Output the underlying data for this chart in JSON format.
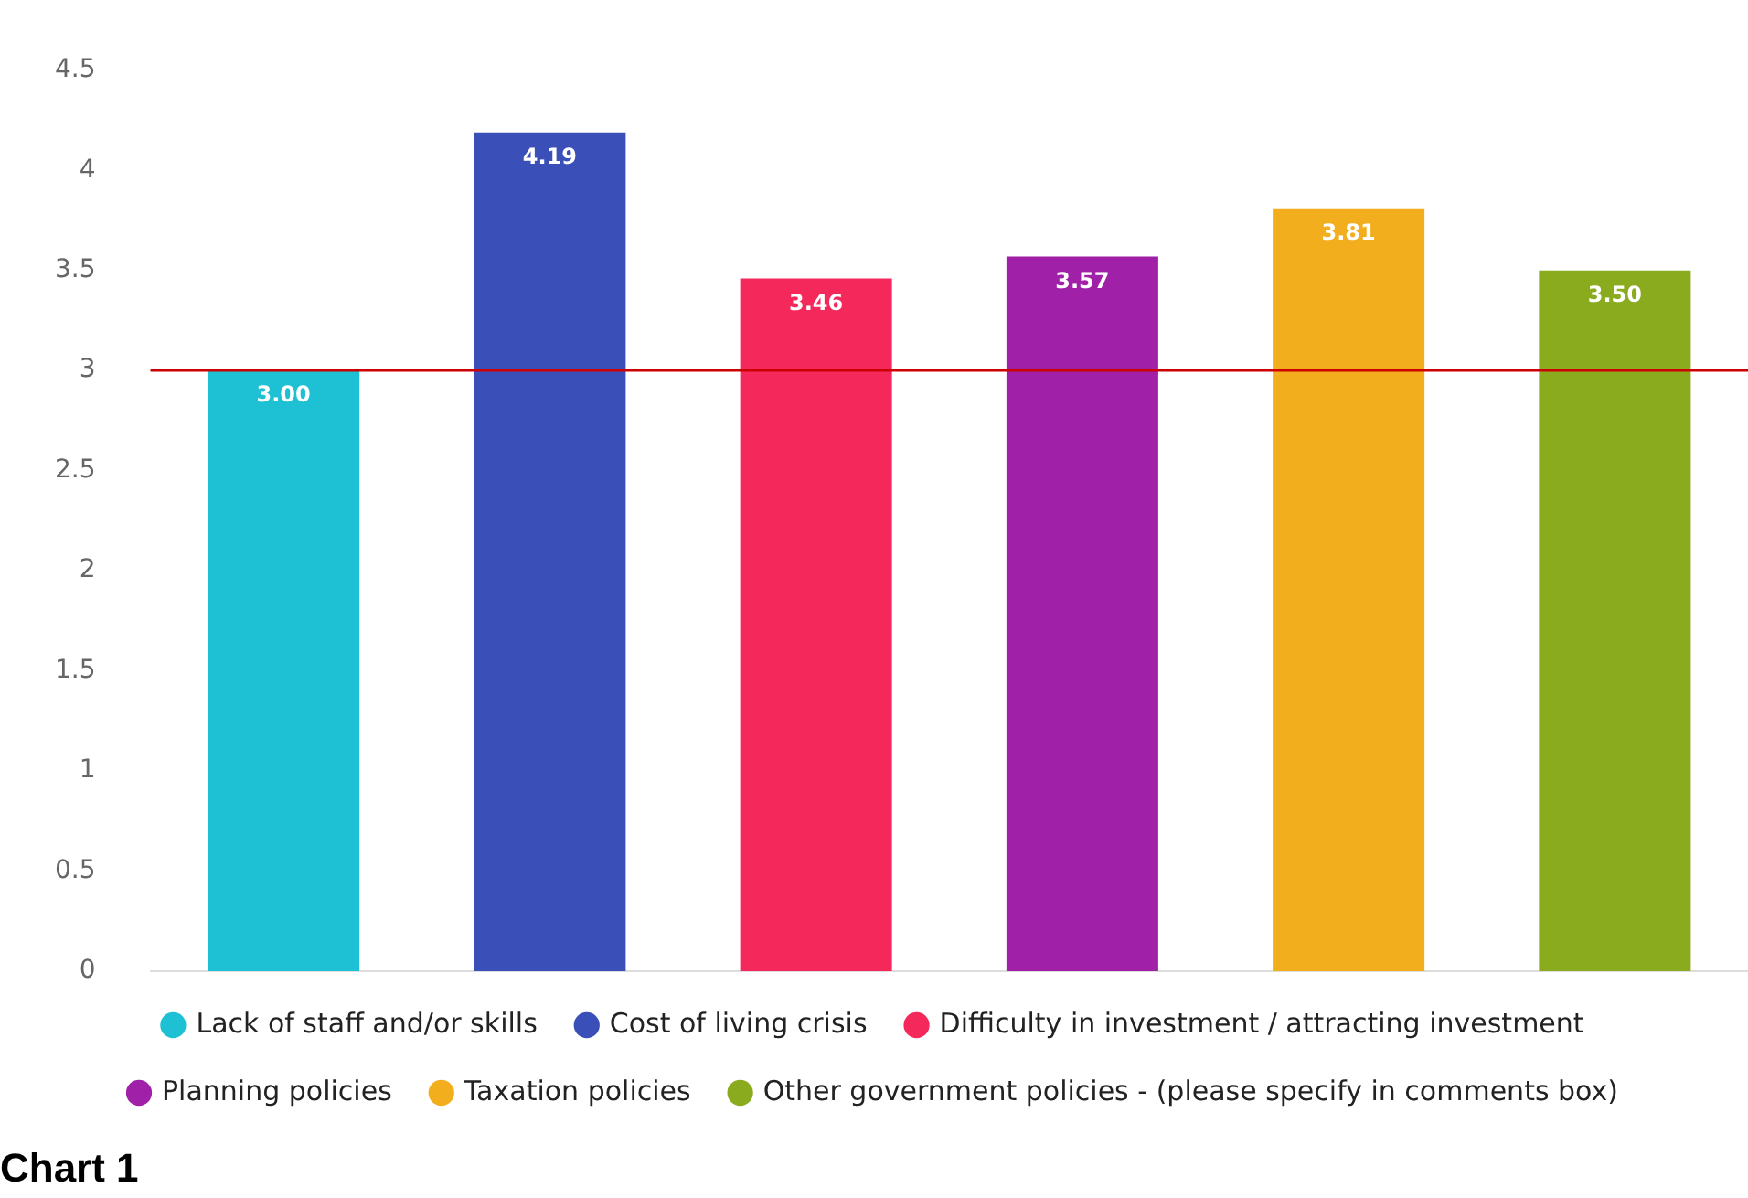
{
  "chart_data": {
    "type": "bar",
    "categories": [
      null
    ],
    "series": [
      {
        "name": "Lack of staff and/or skills",
        "color": "#1ec0d4",
        "values": [
          3.0
        ],
        "value_labels": [
          "3.00"
        ]
      },
      {
        "name": "Cost of living crisis",
        "color": "#3b4fb8",
        "values": [
          4.19
        ],
        "value_labels": [
          "4.19"
        ]
      },
      {
        "name": "Difficulty in investment / attracting investment",
        "color": "#f5285c",
        "values": [
          3.46
        ],
        "value_labels": [
          "3.46"
        ]
      },
      {
        "name": "Planning policies",
        "color": "#a020a8",
        "values": [
          3.57
        ],
        "value_labels": [
          "3.57"
        ]
      },
      {
        "name": "Taxation policies",
        "color": "#f2ae1c",
        "values": [
          3.81
        ],
        "value_labels": [
          "3.81"
        ]
      },
      {
        "name": "Other government policies - (please specify in comments box)",
        "color": "#8aab1e",
        "values": [
          3.5
        ],
        "value_labels": [
          "3.50"
        ]
      }
    ],
    "ylim": [
      0,
      4.5
    ],
    "yticks": [
      0,
      0.5,
      1,
      1.5,
      2,
      2.5,
      3,
      3.5,
      4,
      4.5
    ],
    "ref_lines": [
      {
        "axis": "y",
        "value": 3,
        "color": "#cc0000"
      }
    ],
    "tick_labels": "y",
    "grid": false,
    "legend": "bottom",
    "annotations": [
      "Chart 1"
    ]
  }
}
